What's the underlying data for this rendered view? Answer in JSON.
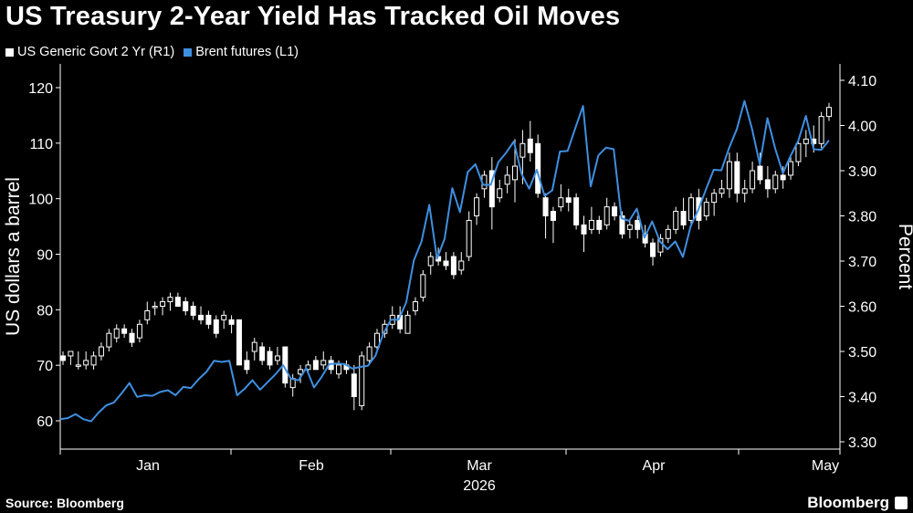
{
  "chart_data": {
    "type": "candlestick+line",
    "title": "US Treasury 2-Year Yield Has Tracked Oil Moves",
    "legend": [
      {
        "name": "US Generic Govt 2 Yr (R1)",
        "color": "#ffffff"
      },
      {
        "name": "Brent futures (L1)",
        "color": "#3f8fe0"
      }
    ],
    "legend_position": "top-left",
    "left_axis": {
      "label": "US dollars a barrel",
      "ticks": [
        60,
        70,
        80,
        90,
        100,
        110,
        120
      ],
      "range": [
        55,
        122
      ]
    },
    "right_axis": {
      "label": "Percent",
      "ticks": [
        "3.30",
        "3.40",
        "3.50",
        "3.60",
        "3.70",
        "3.80",
        "3.90",
        "4.00",
        "4.10"
      ],
      "range": [
        3.29,
        4.1
      ]
    },
    "x_axis": {
      "months": [
        "Jan",
        "Feb",
        "Mar",
        "Apr",
        "May"
      ],
      "year": "2026",
      "grid": false
    },
    "series": [
      {
        "name": "Brent futures (L1)",
        "axis": "left",
        "values": [
          60.3,
          60.5,
          61.2,
          60.3,
          59.9,
          61.5,
          62.8,
          63.3,
          65.0,
          66.8,
          64.3,
          64.6,
          64.5,
          65.2,
          65.5,
          64.6,
          66.1,
          65.9,
          67.5,
          68.8,
          70.8,
          70.6,
          70.8,
          64.6,
          65.8,
          67.3,
          65.6,
          67.0,
          68.4,
          70.0,
          67.6,
          67.3,
          69.5,
          66.0,
          67.9,
          70.2,
          70.3,
          70.2,
          69.4,
          69.7,
          69.9,
          71.7,
          75.6,
          78.2,
          78.2,
          81.3,
          88.9,
          92.3,
          98.9,
          89.2,
          92.8,
          101.9,
          97.6,
          104.8,
          106.2,
          102.5,
          102.5,
          106.6,
          108.3,
          110.3,
          104.5,
          101.8,
          105.2,
          100.5,
          101.5,
          108.5,
          108.6,
          112.7,
          116.7,
          102.2,
          107.8,
          109.2,
          108.9,
          96.5,
          96.0,
          98.2,
          93.0,
          95.9,
          92.3,
          90.9,
          92.3,
          89.5,
          95.0,
          98.0,
          101.7,
          105.2,
          105.1,
          109.1,
          112.5,
          117.6,
          112.5,
          106.2,
          114.5,
          109.0,
          104.6,
          107.7,
          110.4,
          114.9,
          108.9,
          108.8,
          110.5
        ]
      },
      {
        "name": "US Generic Govt 2 Yr (R1)",
        "axis": "right",
        "type": "candlestick",
        "ohlc": [
          [
            3.49,
            3.5,
            3.47,
            3.48
          ],
          [
            3.49,
            3.5,
            3.47,
            3.5
          ],
          [
            3.47,
            3.5,
            3.46,
            3.47
          ],
          [
            3.47,
            3.5,
            3.46,
            3.48
          ],
          [
            3.47,
            3.5,
            3.46,
            3.49
          ],
          [
            3.49,
            3.52,
            3.48,
            3.51
          ],
          [
            3.51,
            3.55,
            3.5,
            3.54
          ],
          [
            3.53,
            3.56,
            3.52,
            3.55
          ],
          [
            3.55,
            3.56,
            3.53,
            3.54
          ],
          [
            3.54,
            3.55,
            3.51,
            3.52
          ],
          [
            3.53,
            3.57,
            3.52,
            3.56
          ],
          [
            3.57,
            3.61,
            3.56,
            3.59
          ],
          [
            3.6,
            3.61,
            3.58,
            3.6
          ],
          [
            3.6,
            3.62,
            3.58,
            3.61
          ],
          [
            3.61,
            3.63,
            3.59,
            3.62
          ],
          [
            3.62,
            3.63,
            3.6,
            3.6
          ],
          [
            3.61,
            3.62,
            3.58,
            3.59
          ],
          [
            3.6,
            3.61,
            3.57,
            3.58
          ],
          [
            3.58,
            3.6,
            3.56,
            3.57
          ],
          [
            3.58,
            3.59,
            3.55,
            3.56
          ],
          [
            3.57,
            3.58,
            3.53,
            3.54
          ],
          [
            3.57,
            3.59,
            3.55,
            3.58
          ],
          [
            3.57,
            3.58,
            3.54,
            3.56
          ],
          [
            3.57,
            3.57,
            3.47,
            3.47
          ],
          [
            3.48,
            3.5,
            3.45,
            3.46
          ],
          [
            3.5,
            3.53,
            3.48,
            3.52
          ],
          [
            3.51,
            3.52,
            3.47,
            3.48
          ],
          [
            3.5,
            3.51,
            3.46,
            3.47
          ],
          [
            3.48,
            3.51,
            3.47,
            3.49
          ],
          [
            3.51,
            3.51,
            3.42,
            3.43
          ],
          [
            3.42,
            3.45,
            3.4,
            3.44
          ],
          [
            3.45,
            3.47,
            3.43,
            3.46
          ],
          [
            3.46,
            3.48,
            3.45,
            3.47
          ],
          [
            3.48,
            3.49,
            3.46,
            3.46
          ],
          [
            3.47,
            3.5,
            3.46,
            3.48
          ],
          [
            3.48,
            3.49,
            3.45,
            3.46
          ],
          [
            3.45,
            3.48,
            3.44,
            3.47
          ],
          [
            3.47,
            3.48,
            3.45,
            3.46
          ],
          [
            3.45,
            3.47,
            3.37,
            3.4
          ],
          [
            3.38,
            3.5,
            3.37,
            3.49
          ],
          [
            3.48,
            3.52,
            3.47,
            3.51
          ],
          [
            3.51,
            3.55,
            3.5,
            3.54
          ],
          [
            3.54,
            3.57,
            3.53,
            3.56
          ],
          [
            3.56,
            3.6,
            3.55,
            3.58
          ],
          [
            3.58,
            3.6,
            3.54,
            3.55
          ],
          [
            3.54,
            3.59,
            3.54,
            3.58
          ],
          [
            3.59,
            3.62,
            3.58,
            3.61
          ],
          [
            3.62,
            3.68,
            3.61,
            3.67
          ],
          [
            3.69,
            3.72,
            3.67,
            3.71
          ],
          [
            3.71,
            3.73,
            3.69,
            3.7
          ],
          [
            3.7,
            3.72,
            3.68,
            3.69
          ],
          [
            3.71,
            3.72,
            3.66,
            3.67
          ],
          [
            3.68,
            3.72,
            3.67,
            3.7
          ],
          [
            3.71,
            3.81,
            3.7,
            3.79
          ],
          [
            3.8,
            3.85,
            3.78,
            3.84
          ],
          [
            3.86,
            3.9,
            3.84,
            3.89
          ],
          [
            3.9,
            3.93,
            3.77,
            3.82
          ],
          [
            3.84,
            3.88,
            3.83,
            3.86
          ],
          [
            3.87,
            3.91,
            3.85,
            3.89
          ],
          [
            3.88,
            3.97,
            3.83,
            3.91
          ],
          [
            3.93,
            3.99,
            3.87,
            3.96
          ],
          [
            3.97,
            4.01,
            3.92,
            3.94
          ],
          [
            3.96,
            3.98,
            3.84,
            3.85
          ],
          [
            3.84,
            3.85,
            3.75,
            3.8
          ],
          [
            3.81,
            3.82,
            3.74,
            3.79
          ],
          [
            3.82,
            3.87,
            3.81,
            3.84
          ],
          [
            3.84,
            3.86,
            3.81,
            3.83
          ],
          [
            3.84,
            3.85,
            3.77,
            3.78
          ],
          [
            3.78,
            3.8,
            3.72,
            3.76
          ],
          [
            3.77,
            3.82,
            3.76,
            3.79
          ],
          [
            3.79,
            3.8,
            3.76,
            3.77
          ],
          [
            3.78,
            3.84,
            3.77,
            3.82
          ],
          [
            3.82,
            3.83,
            3.79,
            3.8
          ],
          [
            3.8,
            3.81,
            3.75,
            3.76
          ],
          [
            3.77,
            3.79,
            3.75,
            3.78
          ],
          [
            3.79,
            3.8,
            3.75,
            3.77
          ],
          [
            3.76,
            3.78,
            3.73,
            3.74
          ],
          [
            3.74,
            3.75,
            3.69,
            3.71
          ],
          [
            3.72,
            3.76,
            3.71,
            3.75
          ],
          [
            3.75,
            3.78,
            3.74,
            3.77
          ],
          [
            3.77,
            3.82,
            3.76,
            3.81
          ],
          [
            3.81,
            3.84,
            3.77,
            3.78
          ],
          [
            3.79,
            3.85,
            3.78,
            3.84
          ],
          [
            3.84,
            3.86,
            3.77,
            3.79
          ],
          [
            3.8,
            3.84,
            3.79,
            3.83
          ],
          [
            3.83,
            3.86,
            3.8,
            3.85
          ],
          [
            3.85,
            3.88,
            3.84,
            3.86
          ],
          [
            3.86,
            3.94,
            3.84,
            3.92
          ],
          [
            3.92,
            3.94,
            3.83,
            3.85
          ],
          [
            3.85,
            3.88,
            3.83,
            3.86
          ],
          [
            3.86,
            3.92,
            3.85,
            3.9
          ],
          [
            3.91,
            3.94,
            3.87,
            3.88
          ],
          [
            3.88,
            3.91,
            3.84,
            3.86
          ],
          [
            3.86,
            3.9,
            3.85,
            3.89
          ],
          [
            3.89,
            3.91,
            3.86,
            3.88
          ],
          [
            3.89,
            3.93,
            3.88,
            3.92
          ],
          [
            3.92,
            3.97,
            3.91,
            3.96
          ],
          [
            3.96,
            3.99,
            3.93,
            3.97
          ],
          [
            3.97,
            4.0,
            3.94,
            3.96
          ],
          [
            3.96,
            4.03,
            3.95,
            4.02
          ],
          [
            4.02,
            4.05,
            4.01,
            4.04
          ]
        ]
      }
    ]
  },
  "footer": {
    "source": "Source: Bloomberg",
    "brand": "Bloomberg"
  }
}
